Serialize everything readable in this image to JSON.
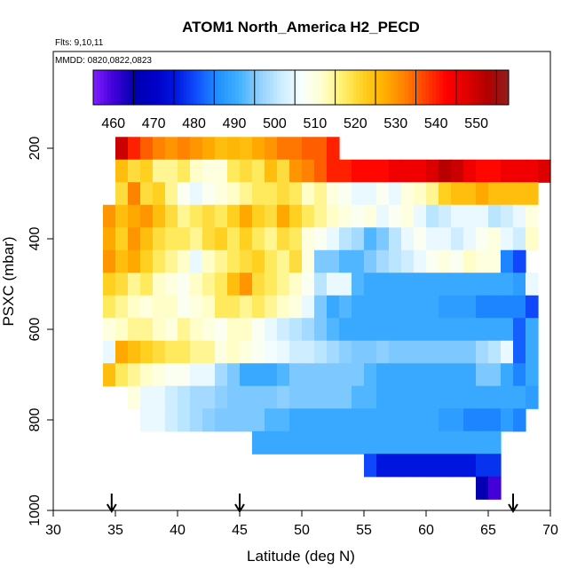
{
  "chart_data": {
    "type": "heatmap",
    "title": "ATOM1 North_America H2_PECD",
    "flights_note": "Flts: 9,10,11",
    "dates_note": "MMDD: 0820,0822,0823",
    "xlabel": "Latitude (deg N)",
    "ylabel": "PSXC (mbar)",
    "xlim": [
      30,
      70
    ],
    "ylim": [
      1000,
      0
    ],
    "x_ticks": [
      30,
      35,
      40,
      45,
      50,
      55,
      60,
      65,
      70
    ],
    "y_ticks": [
      200,
      400,
      600,
      800,
      1000
    ],
    "colorbar": {
      "range": [
        455,
        558
      ],
      "tick_values": [
        460,
        470,
        480,
        490,
        500,
        510,
        520,
        530,
        540,
        550
      ],
      "colors": [
        "#7f1fff",
        "#4000d8",
        "#0000b0",
        "#0000c8",
        "#0018e0",
        "#1050ff",
        "#2090ff",
        "#40b0ff",
        "#90d0ff",
        "#c8ecff",
        "#f8ffff",
        "#ffffd0",
        "#fff070",
        "#ffd020",
        "#ffb000",
        "#ff8000",
        "#ff4000",
        "#ff0000",
        "#e00000",
        "#b00000",
        "#902020"
      ]
    },
    "flight_markers_lat": [
      34.7,
      45.0,
      67.0
    ],
    "cell_width_deg": 1,
    "cell_height_mbar": 50,
    "rows": [
      {
        "p": 200,
        "start": 35,
        "values": [
          550,
          540,
          535,
          532,
          530,
          532,
          530,
          528,
          525,
          526,
          525,
          528,
          530,
          533,
          533,
          535,
          535,
          540
        ]
      },
      {
        "p": 250,
        "start": 35,
        "values": [
          525,
          520,
          522,
          515,
          515,
          518,
          512,
          510,
          510,
          518,
          520,
          518,
          525,
          520,
          530,
          532,
          535,
          540,
          540,
          542,
          542,
          542,
          545,
          545,
          545,
          548,
          552,
          550,
          545,
          542,
          542,
          545,
          545,
          545,
          548
        ]
      },
      {
        "p": 300,
        "start": 35,
        "values": [
          520,
          532,
          520,
          522,
          515,
          508,
          505,
          508,
          510,
          512,
          515,
          518,
          518,
          520,
          518,
          512,
          515,
          510,
          508,
          505,
          505,
          508,
          505,
          510,
          512,
          515,
          522,
          525,
          525,
          528,
          525,
          525,
          525,
          525
        ]
      },
      {
        "p": 350,
        "start": 34,
        "values": [
          530,
          525,
          528,
          530,
          525,
          520,
          515,
          518,
          520,
          518,
          522,
          528,
          522,
          520,
          528,
          522,
          518,
          515,
          512,
          510,
          508,
          510,
          505,
          508,
          510,
          505,
          500,
          502,
          505,
          505,
          505,
          500,
          502,
          505,
          510
        ]
      },
      {
        "p": 400,
        "start": 34,
        "values": [
          528,
          522,
          530,
          525,
          520,
          518,
          518,
          515,
          520,
          522,
          518,
          522,
          518,
          515,
          520,
          518,
          510,
          508,
          505,
          500,
          498,
          492,
          495,
          500,
          505,
          508,
          505,
          505,
          502,
          505,
          508,
          510,
          505,
          502,
          512
        ]
      },
      {
        "p": 450,
        "start": 34,
        "values": [
          530,
          525,
          528,
          522,
          518,
          515,
          512,
          505,
          512,
          515,
          518,
          520,
          522,
          518,
          515,
          520,
          510,
          495,
          495,
          492,
          492,
          495,
          498,
          500,
          502,
          505,
          508,
          510,
          508,
          512,
          510,
          510,
          485,
          480
        ]
      },
      {
        "p": 500,
        "start": 34,
        "values": [
          522,
          520,
          515,
          518,
          512,
          510,
          508,
          512,
          515,
          518,
          525,
          530,
          520,
          518,
          515,
          512,
          508,
          500,
          505,
          505,
          492,
          490,
          490,
          490,
          490,
          490,
          490,
          490,
          490,
          490,
          490,
          490,
          490,
          488,
          505
        ]
      },
      {
        "p": 550,
        "start": 34,
        "values": [
          518,
          515,
          512,
          510,
          512,
          512,
          508,
          510,
          512,
          518,
          518,
          515,
          518,
          515,
          512,
          510,
          505,
          495,
          490,
          492,
          490,
          490,
          490,
          490,
          490,
          490,
          490,
          488,
          488,
          488,
          485,
          485,
          485,
          485,
          480
        ]
      },
      {
        "p": 600,
        "start": 34,
        "values": [
          510,
          512,
          515,
          515,
          512,
          510,
          515,
          512,
          510,
          508,
          512,
          512,
          508,
          505,
          502,
          500,
          498,
          495,
          492,
          490,
          490,
          490,
          490,
          490,
          490,
          490,
          490,
          490,
          490,
          490,
          490,
          490,
          490,
          482,
          490
        ]
      },
      {
        "p": 650,
        "start": 34,
        "values": [
          505,
          528,
          525,
          522,
          520,
          518,
          518,
          515,
          515,
          510,
          512,
          510,
          508,
          506,
          505,
          502,
          502,
          500,
          498,
          496,
          495,
          495,
          496,
          495,
          495,
          495,
          495,
          495,
          495,
          495,
          498,
          500,
          505,
          482,
          490
        ]
      },
      {
        "p": 700,
        "start": 34,
        "values": [
          525,
          518,
          515,
          512,
          510,
          508,
          508,
          505,
          505,
          498,
          495,
          490,
          490,
          490,
          492,
          495,
          495,
          495,
          495,
          495,
          495,
          492,
          490,
          490,
          490,
          490,
          490,
          490,
          490,
          490,
          495,
          495,
          490,
          485,
          490
        ]
      },
      {
        "p": 750,
        "start": 36,
        "values": [
          510,
          505,
          505,
          502,
          500,
          498,
          498,
          496,
          495,
          495,
          495,
          495,
          496,
          495,
          495,
          495,
          495,
          495,
          492,
          492,
          490,
          490,
          490,
          490,
          490,
          490,
          490,
          490,
          490,
          490,
          490,
          490,
          488
        ]
      },
      {
        "p": 800,
        "start": 37,
        "values": [
          505,
          505,
          502,
          500,
          498,
          496,
          495,
          495,
          495,
          495,
          492,
          492,
          490,
          490,
          490,
          490,
          490,
          490,
          490,
          490,
          490,
          490,
          490,
          490,
          488,
          488,
          485,
          485,
          485,
          488,
          485
        ]
      },
      {
        "p": 850,
        "start": 46,
        "values": [
          490,
          490,
          490,
          490,
          490,
          490,
          490,
          490,
          490,
          490,
          490,
          490,
          490,
          490,
          490,
          490,
          490,
          490,
          490,
          490
        ]
      },
      {
        "p": 900,
        "start": 55,
        "values": [
          480,
          475,
          475,
          475,
          475,
          475,
          475,
          475,
          475,
          478,
          478
        ]
      },
      {
        "p": 950,
        "start": 64,
        "values": [
          465,
          460
        ]
      }
    ]
  }
}
